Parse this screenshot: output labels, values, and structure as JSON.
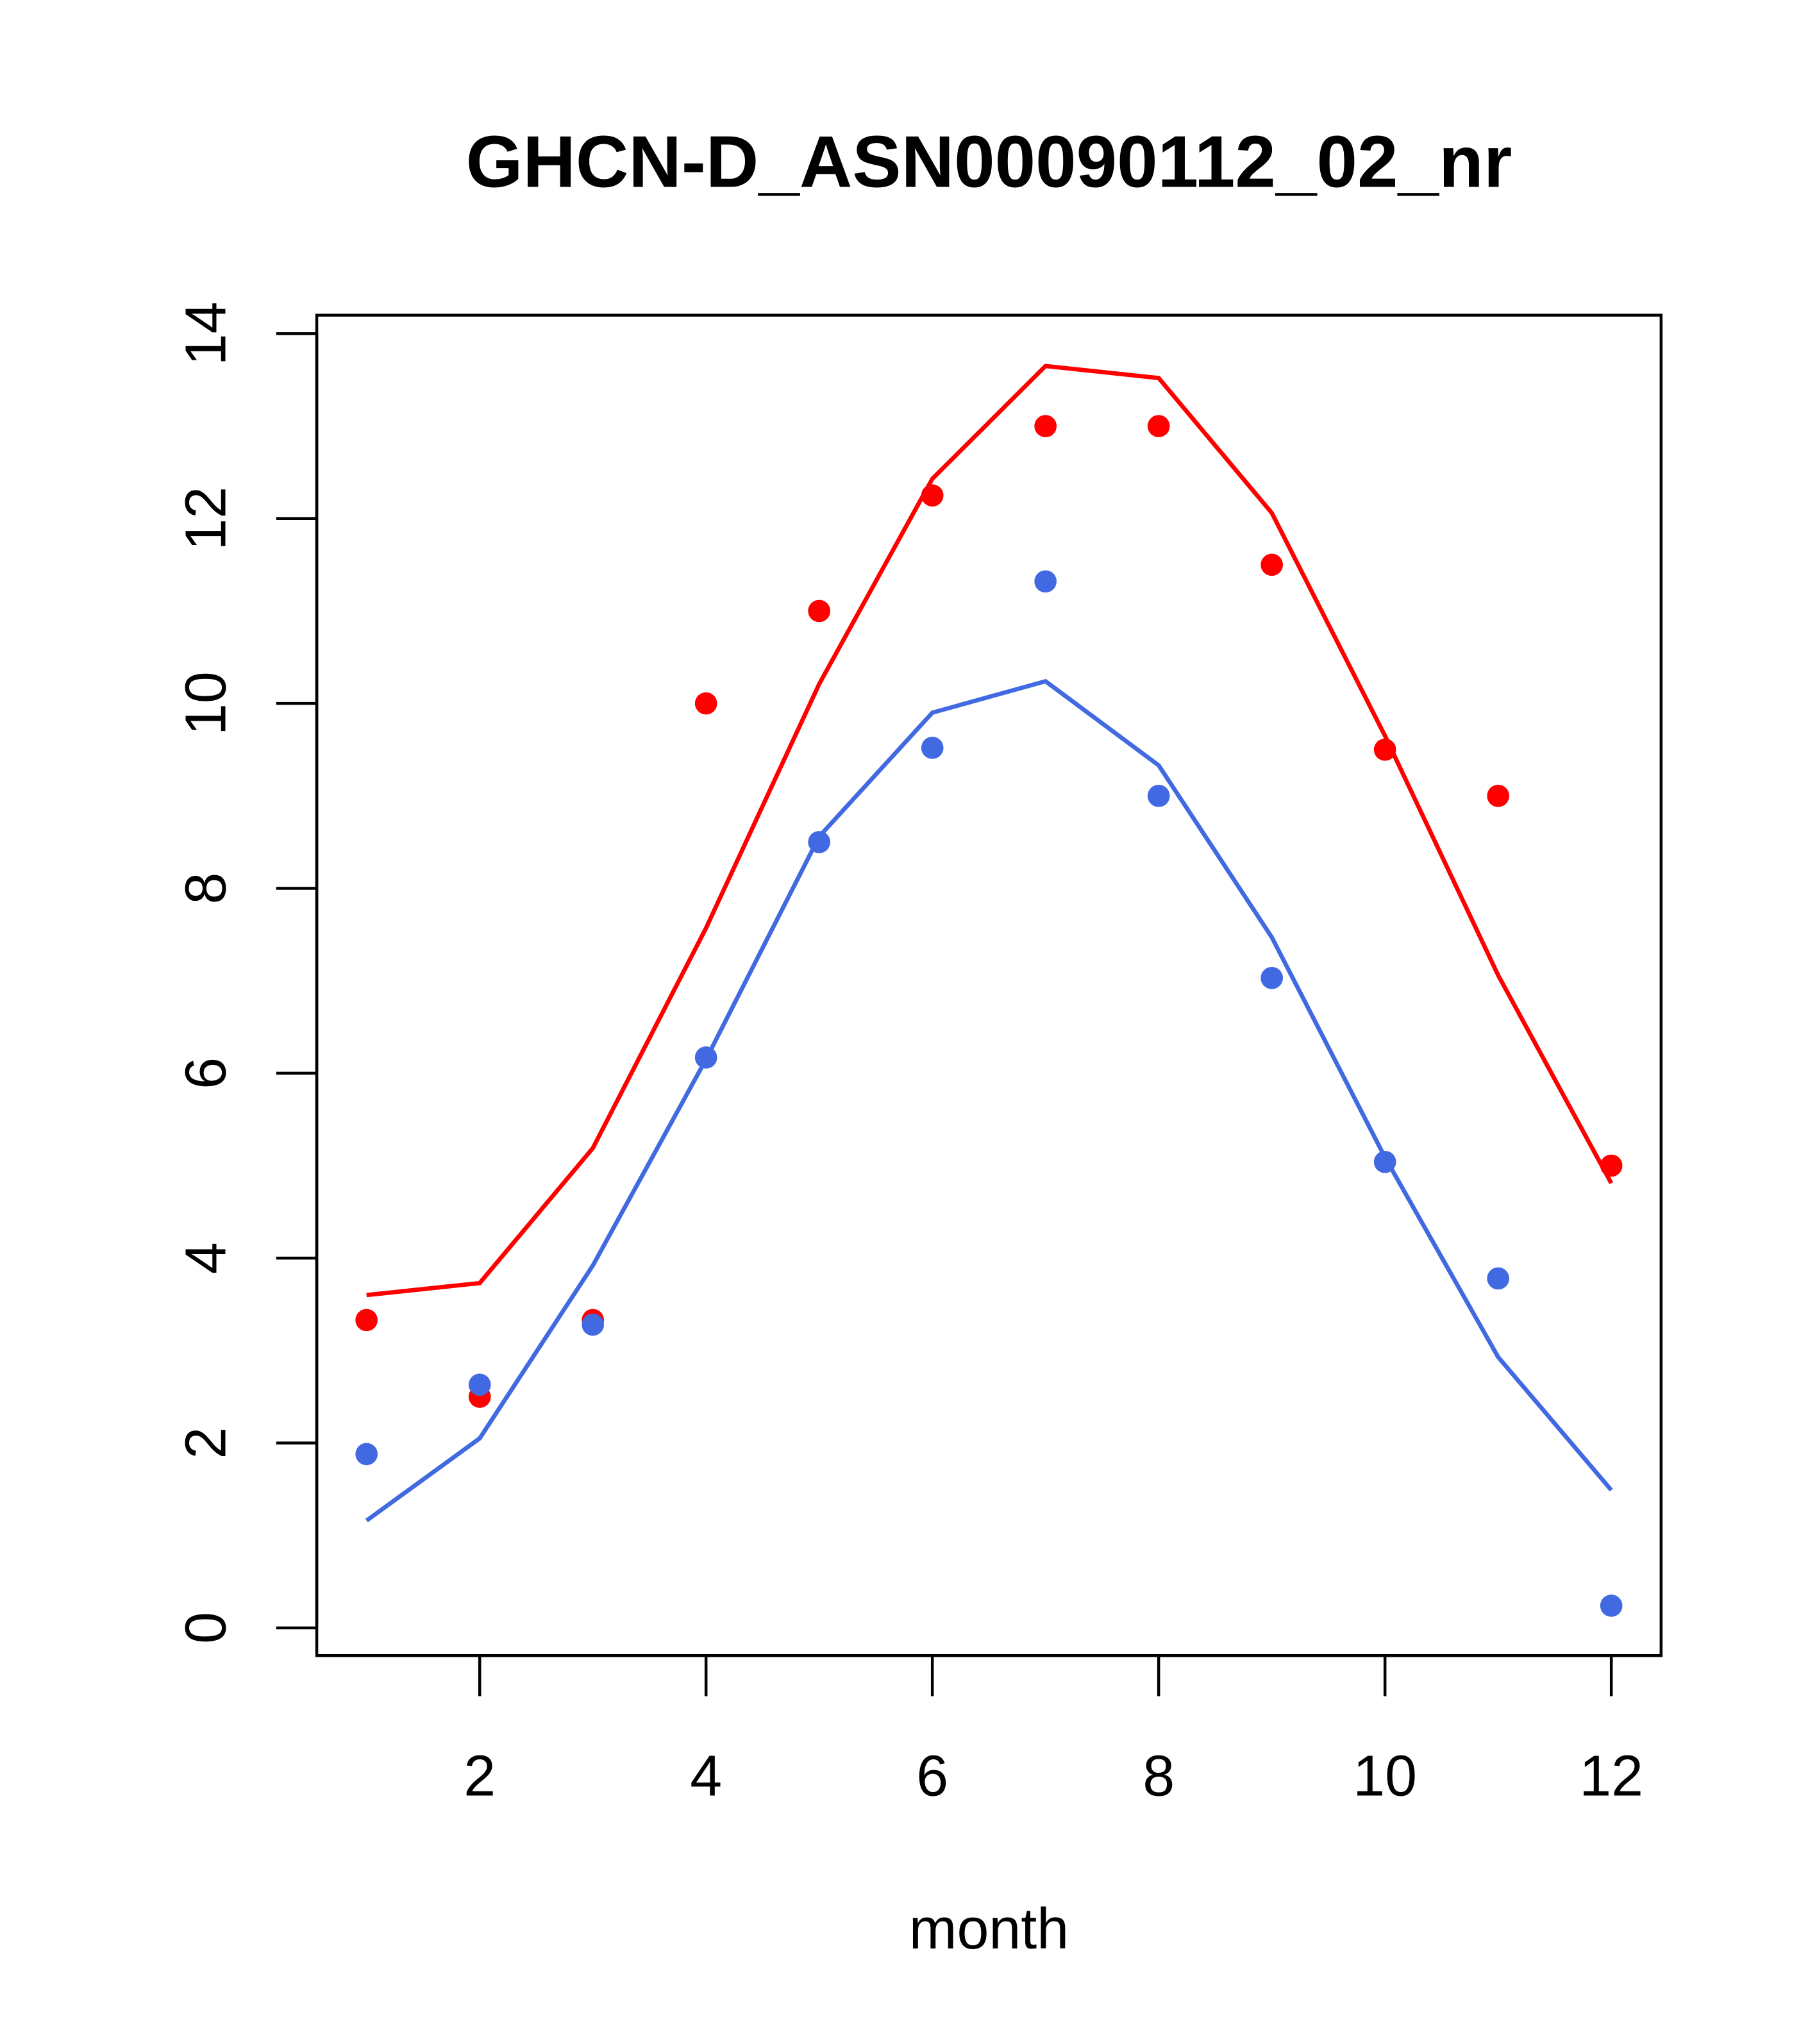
{
  "chart_data": {
    "type": "line",
    "title": "GHCN-D_ASN00090112_02_nr",
    "xlabel": "month",
    "ylabel": "",
    "xlim": [
      0.56,
      12.44
    ],
    "ylim": [
      -0.3,
      14.2
    ],
    "xticks": [
      2,
      4,
      6,
      8,
      10,
      12
    ],
    "xtick_labels": [
      "2",
      "4",
      "6",
      "8",
      "10",
      "12"
    ],
    "yticks": [
      0,
      2,
      4,
      6,
      8,
      10,
      12,
      14
    ],
    "ytick_labels": [
      "0",
      "2",
      "4",
      "6",
      "8",
      "10",
      "12",
      "14"
    ],
    "grid": false,
    "x": [
      1,
      2,
      3,
      4,
      5,
      6,
      7,
      8,
      9,
      10,
      11,
      12
    ],
    "series": [
      {
        "name": "red-line",
        "kind": "line",
        "color": "#ff0000",
        "values": [
          3.6,
          3.73,
          5.19,
          7.57,
          10.21,
          12.43,
          13.65,
          13.52,
          12.06,
          9.65,
          7.06,
          4.81
        ]
      },
      {
        "name": "red-points",
        "kind": "points",
        "color": "#ff0000",
        "values": [
          3.33,
          2.5,
          3.33,
          10.0,
          11.0,
          12.25,
          13.0,
          13.0,
          11.5,
          9.5,
          9.0,
          5.0
        ]
      },
      {
        "name": "blue-line",
        "kind": "line",
        "color": "#4169e1",
        "values": [
          1.16,
          2.05,
          3.92,
          6.15,
          8.56,
          9.9,
          10.24,
          9.33,
          7.47,
          5.09,
          2.93,
          1.49
        ]
      },
      {
        "name": "blue-points",
        "kind": "points",
        "color": "#4169e1",
        "values": [
          1.88,
          2.63,
          3.28,
          6.17,
          8.5,
          9.52,
          11.32,
          9.0,
          7.03,
          5.04,
          3.78,
          0.24
        ]
      }
    ]
  }
}
